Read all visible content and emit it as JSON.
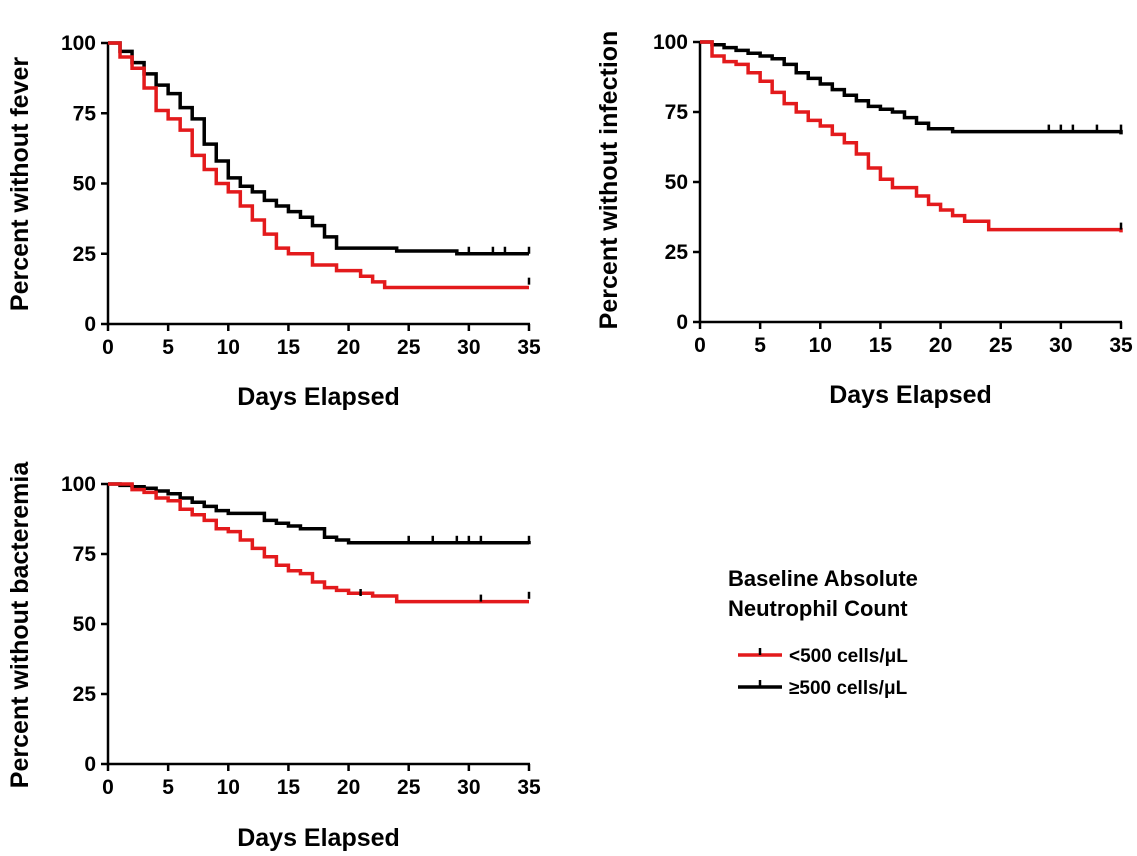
{
  "colors": {
    "red_series": "#e31a1c",
    "black_series": "#000000",
    "axis": "#000000"
  },
  "legend": {
    "title_line1": "Baseline Absolute",
    "title_line2": "Neutrophil Count",
    "entries": [
      {
        "label": "<500 cells/μL",
        "color": "#e31a1c"
      },
      {
        "label": "≥500 cells/μL",
        "color": "#000000"
      }
    ]
  },
  "chart_data": [
    {
      "type": "line",
      "step": true,
      "xlabel": "Days Elapsed",
      "ylabel": "Percent without fever",
      "xlim": [
        0,
        35
      ],
      "ylim": [
        0,
        100
      ],
      "xticks": [
        0,
        5,
        10,
        15,
        20,
        25,
        30,
        35
      ],
      "yticks": [
        0,
        25,
        50,
        75,
        100
      ],
      "series": [
        {
          "name": "≥500 cells/μL",
          "color": "#000000",
          "points": [
            [
              0,
              100
            ],
            [
              1,
              97
            ],
            [
              2,
              93
            ],
            [
              3,
              89
            ],
            [
              4,
              85
            ],
            [
              5,
              82
            ],
            [
              6,
              77
            ],
            [
              7,
              73
            ],
            [
              8,
              64
            ],
            [
              9,
              58
            ],
            [
              10,
              52
            ],
            [
              11,
              49
            ],
            [
              12,
              47
            ],
            [
              13,
              44
            ],
            [
              14,
              42
            ],
            [
              15,
              40
            ],
            [
              16,
              38
            ],
            [
              17,
              35
            ],
            [
              18,
              31
            ],
            [
              19,
              27
            ],
            [
              24,
              26
            ],
            [
              29,
              25
            ],
            [
              35,
              25
            ]
          ],
          "censored": [
            [
              30,
              25
            ],
            [
              32,
              25
            ],
            [
              33,
              25
            ],
            [
              35,
              25
            ]
          ]
        },
        {
          "name": "<500 cells/μL",
          "color": "#e31a1c",
          "points": [
            [
              0,
              100
            ],
            [
              1,
              95
            ],
            [
              2,
              91
            ],
            [
              3,
              84
            ],
            [
              4,
              76
            ],
            [
              5,
              73
            ],
            [
              6,
              69
            ],
            [
              7,
              60
            ],
            [
              8,
              55
            ],
            [
              9,
              50
            ],
            [
              10,
              47
            ],
            [
              11,
              42
            ],
            [
              12,
              37
            ],
            [
              13,
              32
            ],
            [
              14,
              27
            ],
            [
              15,
              25
            ],
            [
              17,
              21
            ],
            [
              19,
              19
            ],
            [
              21,
              17
            ],
            [
              22,
              15
            ],
            [
              23,
              13
            ],
            [
              35,
              13
            ]
          ],
          "censored": [
            [
              35,
              14
            ]
          ]
        }
      ]
    },
    {
      "type": "line",
      "step": true,
      "xlabel": "Days Elapsed",
      "ylabel": "Percent without infection",
      "xlim": [
        0,
        35
      ],
      "ylim": [
        0,
        100
      ],
      "xticks": [
        0,
        5,
        10,
        15,
        20,
        25,
        30,
        35
      ],
      "yticks": [
        0,
        25,
        50,
        75,
        100
      ],
      "series": [
        {
          "name": "≥500 cells/μL",
          "color": "#000000",
          "points": [
            [
              0,
              100
            ],
            [
              1,
              99
            ],
            [
              2,
              98
            ],
            [
              3,
              97
            ],
            [
              4,
              96
            ],
            [
              5,
              95
            ],
            [
              6,
              94
            ],
            [
              7,
              92
            ],
            [
              8,
              89
            ],
            [
              9,
              87
            ],
            [
              10,
              85
            ],
            [
              11,
              83
            ],
            [
              12,
              81
            ],
            [
              13,
              79
            ],
            [
              14,
              77
            ],
            [
              15,
              76
            ],
            [
              16,
              75
            ],
            [
              17,
              73
            ],
            [
              18,
              71
            ],
            [
              19,
              69
            ],
            [
              21,
              68
            ],
            [
              35,
              67
            ]
          ],
          "censored": [
            [
              29,
              68
            ],
            [
              30,
              68
            ],
            [
              31,
              68
            ],
            [
              33,
              68
            ],
            [
              35,
              68
            ]
          ]
        },
        {
          "name": "<500 cells/μL",
          "color": "#e31a1c",
          "points": [
            [
              0,
              100
            ],
            [
              1,
              95
            ],
            [
              2,
              93
            ],
            [
              3,
              92
            ],
            [
              4,
              89
            ],
            [
              5,
              86
            ],
            [
              6,
              82
            ],
            [
              7,
              78
            ],
            [
              8,
              75
            ],
            [
              9,
              72
            ],
            [
              10,
              70
            ],
            [
              11,
              67
            ],
            [
              12,
              64
            ],
            [
              13,
              60
            ],
            [
              14,
              55
            ],
            [
              15,
              51
            ],
            [
              16,
              48
            ],
            [
              18,
              45
            ],
            [
              19,
              42
            ],
            [
              20,
              40
            ],
            [
              21,
              38
            ],
            [
              22,
              36
            ],
            [
              24,
              33
            ],
            [
              35,
              32
            ]
          ],
          "censored": [
            [
              35,
              33
            ]
          ]
        }
      ]
    },
    {
      "type": "line",
      "step": true,
      "xlabel": "Days Elapsed",
      "ylabel": "Percent without bacteremia",
      "xlim": [
        0,
        35
      ],
      "ylim": [
        0,
        100
      ],
      "xticks": [
        0,
        5,
        10,
        15,
        20,
        25,
        30,
        35
      ],
      "yticks": [
        0,
        25,
        50,
        75,
        100
      ],
      "series": [
        {
          "name": "≥500 cells/μL",
          "color": "#000000",
          "points": [
            [
              0,
              100
            ],
            [
              1,
              99.5
            ],
            [
              2,
              99
            ],
            [
              3,
              98.5
            ],
            [
              4,
              97.5
            ],
            [
              5,
              96.5
            ],
            [
              6,
              95
            ],
            [
              7,
              93.5
            ],
            [
              8,
              92
            ],
            [
              9,
              90.5
            ],
            [
              10,
              89.5
            ],
            [
              13,
              87
            ],
            [
              14,
              86
            ],
            [
              15,
              85
            ],
            [
              16,
              84
            ],
            [
              18,
              81
            ],
            [
              19,
              80
            ],
            [
              20,
              79
            ],
            [
              35,
              78.5
            ]
          ],
          "censored": [
            [
              25,
              79
            ],
            [
              27,
              79
            ],
            [
              29,
              79
            ],
            [
              30,
              79
            ],
            [
              31,
              79
            ],
            [
              35,
              79
            ]
          ]
        },
        {
          "name": "<500 cells/μL",
          "color": "#e31a1c",
          "points": [
            [
              0,
              100
            ],
            [
              2,
              98
            ],
            [
              3,
              97
            ],
            [
              4,
              95
            ],
            [
              5,
              94
            ],
            [
              6,
              91
            ],
            [
              7,
              89
            ],
            [
              8,
              87
            ],
            [
              9,
              84
            ],
            [
              10,
              83
            ],
            [
              11,
              80
            ],
            [
              12,
              77
            ],
            [
              13,
              74
            ],
            [
              14,
              71
            ],
            [
              15,
              69
            ],
            [
              16,
              68
            ],
            [
              17,
              65
            ],
            [
              18,
              63
            ],
            [
              19,
              62
            ],
            [
              20,
              61
            ],
            [
              22,
              60
            ],
            [
              24,
              58
            ],
            [
              35,
              58
            ]
          ],
          "censored": [
            [
              21,
              60
            ],
            [
              31,
              58
            ],
            [
              35,
              59
            ]
          ]
        }
      ]
    }
  ]
}
